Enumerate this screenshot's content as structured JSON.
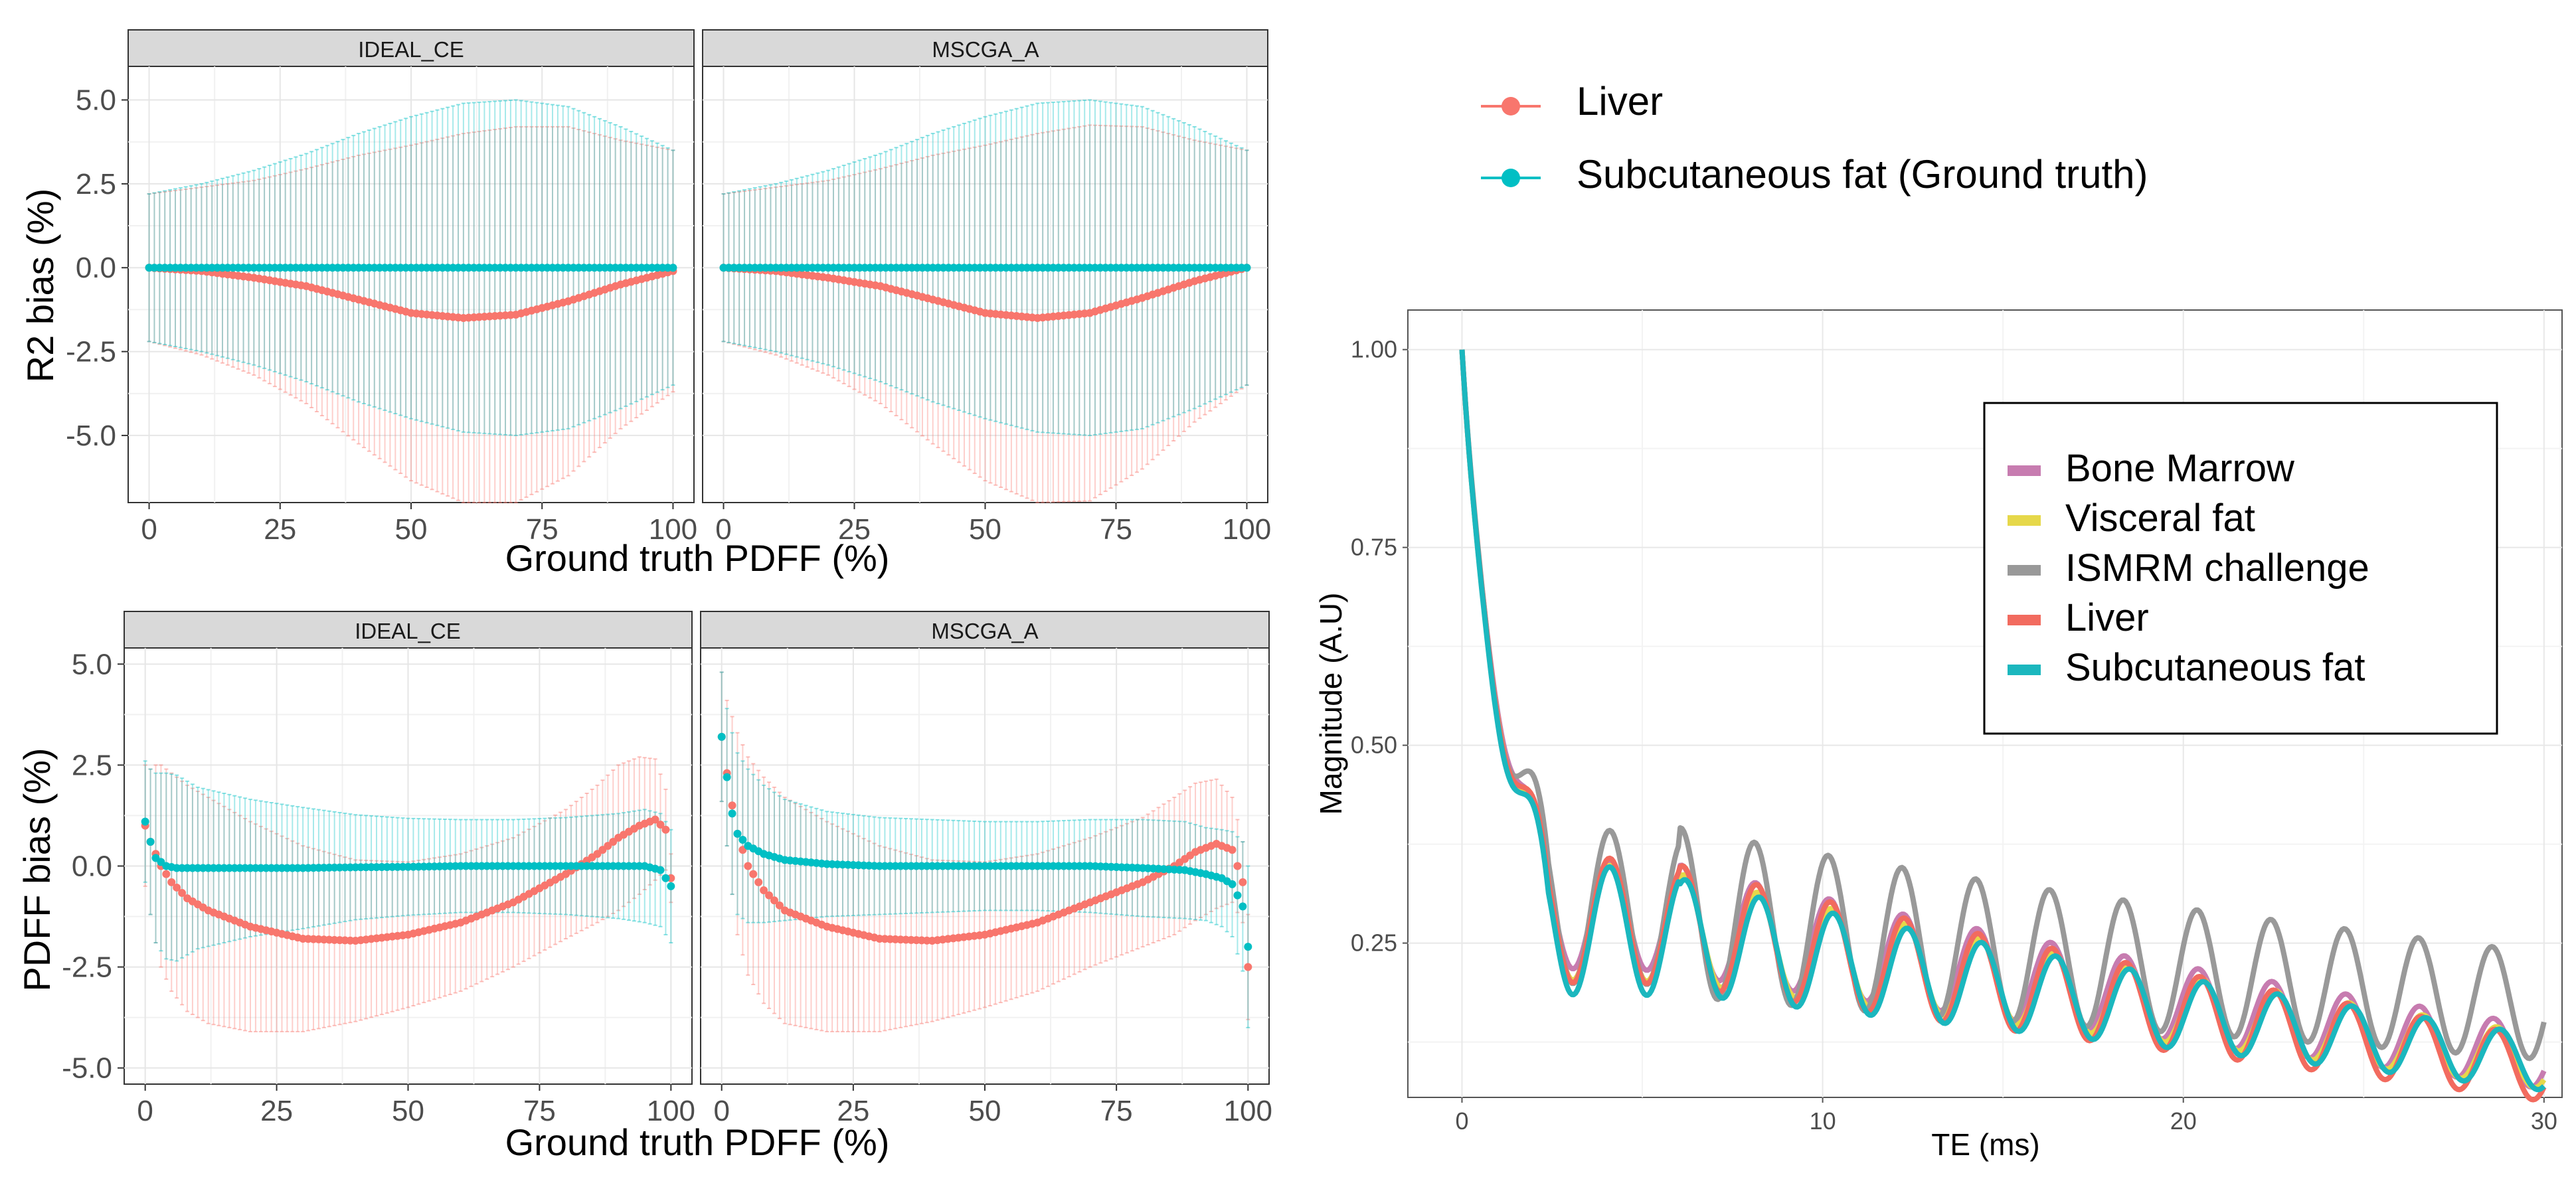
{
  "colors": {
    "liver": "#F8766D",
    "subcutaneous": "#00BFC4",
    "bone_marrow": "#C77CB0",
    "visceral": "#E6D84A",
    "ismrm": "#999999",
    "liver_line": "#F26B5F",
    "subcutaneous_line": "#1BB7BE"
  },
  "top_legend": {
    "items": [
      {
        "label": "Liver",
        "color_key": "liver"
      },
      {
        "label": "Subcutaneous fat (Ground truth)",
        "color_key": "subcutaneous"
      }
    ]
  },
  "chart_data": [
    {
      "type": "scatter",
      "name": "r2-bias-facets",
      "ylabel": "R2 bias (%)",
      "xlabel": "Ground truth PDFF (%)",
      "x_ticks": [
        0,
        25,
        50,
        75,
        100
      ],
      "x_tick_labels": [
        "0",
        "25",
        "50",
        "75",
        "100"
      ],
      "y_ticks": [
        5,
        2.5,
        0,
        -2.5,
        -5
      ],
      "y_tick_labels": [
        "5.0",
        "2.5",
        "0.0",
        "-2.5",
        "-5.0"
      ],
      "xlim": [
        -4,
        104
      ],
      "ylim": [
        -7.0,
        6.0
      ],
      "facets": [
        {
          "title": "IDEAL_CE",
          "series": [
            {
              "name": "Liver",
              "x": [
                0,
                10,
                20,
                30,
                40,
                50,
                60,
                70,
                80,
                90,
                100
              ],
              "y": [
                0.0,
                -0.1,
                -0.3,
                -0.55,
                -0.95,
                -1.35,
                -1.5,
                -1.4,
                -1.0,
                -0.5,
                -0.1
              ],
              "sd": [
                2.2,
                2.5,
                2.9,
                3.5,
                4.3,
                5.0,
                5.5,
                5.6,
                5.2,
                4.3,
                3.6
              ]
            },
            {
              "name": "Subcutaneous fat (Ground truth)",
              "x": [
                0,
                10,
                20,
                30,
                40,
                50,
                60,
                70,
                80,
                90,
                100
              ],
              "y": [
                0,
                0,
                0,
                0,
                0,
                0,
                0,
                0,
                0,
                0,
                0
              ],
              "sd": [
                2.2,
                2.5,
                2.9,
                3.4,
                4.0,
                4.5,
                4.9,
                5.0,
                4.8,
                4.2,
                3.5
              ]
            }
          ]
        },
        {
          "title": "MSCGA_A",
          "series": [
            {
              "name": "Liver",
              "x": [
                0,
                10,
                20,
                30,
                40,
                50,
                60,
                70,
                80,
                90,
                100
              ],
              "y": [
                0.0,
                -0.1,
                -0.3,
                -0.55,
                -0.95,
                -1.35,
                -1.5,
                -1.35,
                -0.9,
                -0.4,
                0.0
              ],
              "sd": [
                2.2,
                2.5,
                2.9,
                3.5,
                4.3,
                5.0,
                5.5,
                5.6,
                5.1,
                4.2,
                3.5
              ]
            },
            {
              "name": "Subcutaneous fat (Ground truth)",
              "x": [
                0,
                10,
                20,
                30,
                40,
                50,
                60,
                70,
                80,
                90,
                100
              ],
              "y": [
                0,
                0,
                0,
                0,
                0,
                0,
                0,
                0,
                0,
                0,
                0
              ],
              "sd": [
                2.2,
                2.5,
                2.9,
                3.4,
                4.0,
                4.5,
                4.9,
                5.0,
                4.8,
                4.2,
                3.5
              ]
            }
          ]
        }
      ]
    },
    {
      "type": "scatter",
      "name": "pdff-bias-facets",
      "ylabel": "PDFF bias (%)",
      "xlabel": "Ground truth PDFF (%)",
      "x_ticks": [
        0,
        25,
        50,
        75,
        100
      ],
      "x_tick_labels": [
        "0",
        "25",
        "50",
        "75",
        "100"
      ],
      "y_ticks": [
        5,
        2.5,
        0,
        -2.5,
        -5
      ],
      "y_tick_labels": [
        "5.0",
        "2.5",
        "0.0",
        "-2.5",
        "-5.0"
      ],
      "xlim": [
        -4,
        104
      ],
      "ylim": [
        -5.4,
        5.4
      ],
      "facets": [
        {
          "title": "IDEAL_CE",
          "series": [
            {
              "name": "Liver",
              "x": [
                0,
                1,
                2,
                3,
                5,
                8,
                12,
                20,
                30,
                40,
                50,
                60,
                70,
                80,
                86,
                90,
                94,
                97,
                99,
                100
              ],
              "y": [
                1.0,
                0.6,
                0.3,
                0.0,
                -0.4,
                -0.8,
                -1.1,
                -1.5,
                -1.8,
                -1.85,
                -1.7,
                -1.4,
                -0.9,
                -0.2,
                0.3,
                0.7,
                1.0,
                1.15,
                0.9,
                -0.3
              ],
              "sd": [
                1.5,
                1.8,
                2.2,
                2.5,
                2.7,
                2.8,
                2.8,
                2.6,
                2.3,
                2.0,
                1.8,
                1.7,
                1.6,
                1.6,
                1.7,
                1.8,
                1.7,
                1.5,
                1.0,
                0.6
              ]
            },
            {
              "name": "Subcutaneous fat (Ground truth)",
              "x": [
                0,
                1,
                2,
                4,
                6,
                10,
                20,
                30,
                40,
                50,
                60,
                70,
                80,
                90,
                95,
                98,
                100
              ],
              "y": [
                1.1,
                0.6,
                0.2,
                0.0,
                -0.05,
                -0.05,
                -0.05,
                -0.05,
                -0.03,
                -0.02,
                0.0,
                0.0,
                0.0,
                0.0,
                0.0,
                -0.1,
                -0.5
              ],
              "sd": [
                1.5,
                1.8,
                2.1,
                2.3,
                2.3,
                2.0,
                1.7,
                1.5,
                1.3,
                1.2,
                1.15,
                1.15,
                1.2,
                1.3,
                1.4,
                1.4,
                1.4
              ]
            }
          ]
        },
        {
          "title": "MSCGA_A",
          "series": [
            {
              "name": "Liver",
              "x": [
                0,
                1,
                2,
                3,
                5,
                8,
                12,
                20,
                30,
                40,
                50,
                60,
                70,
                80,
                86,
                90,
                94,
                97,
                99,
                100
              ],
              "y": [
                3.2,
                2.3,
                1.5,
                0.8,
                0.0,
                -0.6,
                -1.1,
                -1.5,
                -1.8,
                -1.85,
                -1.7,
                -1.4,
                -0.9,
                -0.4,
                0.0,
                0.35,
                0.55,
                0.4,
                -0.4,
                -2.5
              ],
              "sd": [
                1.6,
                1.8,
                2.2,
                2.5,
                2.7,
                2.8,
                2.8,
                2.6,
                2.3,
                2.0,
                1.8,
                1.7,
                1.6,
                1.6,
                1.7,
                1.7,
                1.6,
                1.3,
                1.0,
                1.3
              ]
            },
            {
              "name": "Subcutaneous fat (Ground truth)",
              "x": [
                0,
                1,
                2,
                3,
                5,
                8,
                12,
                20,
                30,
                40,
                50,
                60,
                70,
                80,
                88,
                92,
                95,
                97,
                99,
                100
              ],
              "y": [
                3.2,
                2.2,
                1.3,
                0.8,
                0.5,
                0.3,
                0.15,
                0.05,
                0.0,
                0.0,
                0.0,
                0.0,
                0.0,
                -0.05,
                -0.1,
                -0.2,
                -0.3,
                -0.45,
                -1.0,
                -2.0
              ],
              "sd": [
                1.6,
                1.7,
                2.0,
                2.0,
                1.9,
                1.7,
                1.5,
                1.3,
                1.2,
                1.15,
                1.1,
                1.1,
                1.15,
                1.2,
                1.2,
                1.15,
                1.2,
                1.3,
                1.6,
                2.0
              ]
            }
          ]
        }
      ]
    },
    {
      "type": "line",
      "name": "magnitude-decay",
      "xlabel": "TE (ms)",
      "ylabel": "Magnitude (A.U)",
      "xlim": [
        -1.5,
        30.5
      ],
      "ylim": [
        0.055,
        1.05
      ],
      "x_ticks": [
        0,
        10,
        20,
        30
      ],
      "x_tick_labels": [
        "0",
        "10",
        "20",
        "30"
      ],
      "y_ticks": [
        1.0,
        0.75,
        0.5,
        0.25
      ],
      "y_tick_labels": [
        "1.00",
        "0.75",
        "0.50",
        "0.25"
      ],
      "series": [
        {
          "name": "Bone Marrow",
          "color_key": "bone_marrow",
          "base": 0.265,
          "amp": 0.06,
          "ampDecay": 0.05,
          "endAmp": 0.02,
          "extra": 0.012,
          "final": 0.105
        },
        {
          "name": "Visceral fat",
          "color_key": "visceral",
          "base": 0.255,
          "amp": 0.065,
          "ampDecay": 0.05,
          "endAmp": 0.02,
          "extra": 0.0,
          "final": 0.1
        },
        {
          "name": "ISMRM challenge",
          "color_key": "ismrm",
          "base": 0.275,
          "amp": 0.085,
          "ampDecay": 0.04,
          "endAmp": 0.025,
          "extra": 0.03,
          "final": 0.17
        },
        {
          "name": "Liver",
          "color_key": "liver_line",
          "base": 0.258,
          "amp": 0.07,
          "ampDecay": 0.05,
          "endAmp": 0.022,
          "extra": 0.006,
          "final": 0.09
        },
        {
          "name": "Subcutaneous fat",
          "color_key": "subcutaneous_line",
          "base": 0.245,
          "amp": 0.075,
          "ampDecay": 0.05,
          "endAmp": 0.02,
          "extra": -0.01,
          "final": 0.098
        }
      ]
    }
  ]
}
